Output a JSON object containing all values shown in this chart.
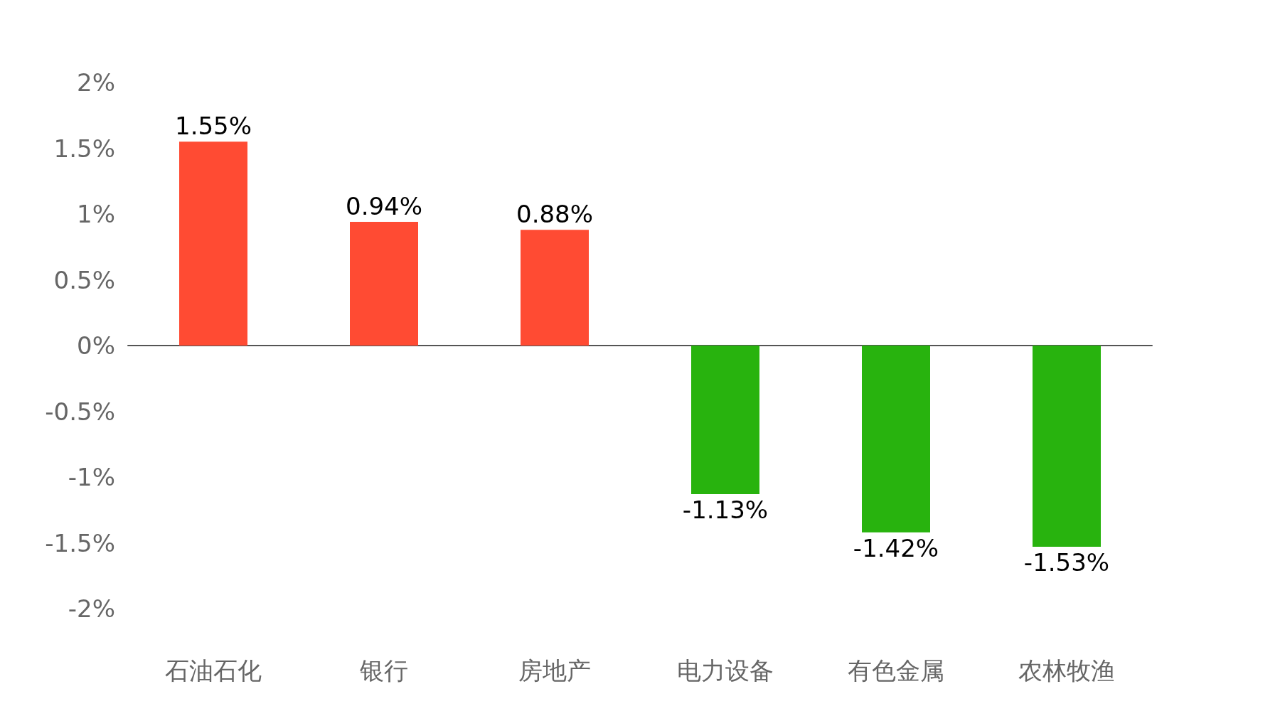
{
  "chart_data": {
    "type": "bar",
    "categories": [
      "石油石化",
      "银行",
      "房地产",
      "电力设备",
      "有色金属",
      "农林牧渔"
    ],
    "values": [
      1.55,
      0.94,
      0.88,
      -1.13,
      -1.42,
      -1.53
    ],
    "value_labels": [
      "1.55%",
      "0.94%",
      "0.88%",
      "-1.13%",
      "-1.42%",
      "-1.53%"
    ],
    "colors": [
      "#ff4b33",
      "#ff4b33",
      "#ff4b33",
      "#28b30e",
      "#28b30e",
      "#28b30e"
    ],
    "ylim": [
      -2,
      2
    ],
    "yticks": [
      {
        "value": -2,
        "label": "-2%"
      },
      {
        "value": -1.5,
        "label": "-1.5%"
      },
      {
        "value": -1,
        "label": "-1%"
      },
      {
        "value": -0.5,
        "label": "-0.5%"
      },
      {
        "value": 0,
        "label": "0%"
      },
      {
        "value": 0.5,
        "label": "0.5%"
      },
      {
        "value": 1,
        "label": "1%"
      },
      {
        "value": 1.5,
        "label": "1.5%"
      },
      {
        "value": 2,
        "label": "2%"
      }
    ]
  }
}
